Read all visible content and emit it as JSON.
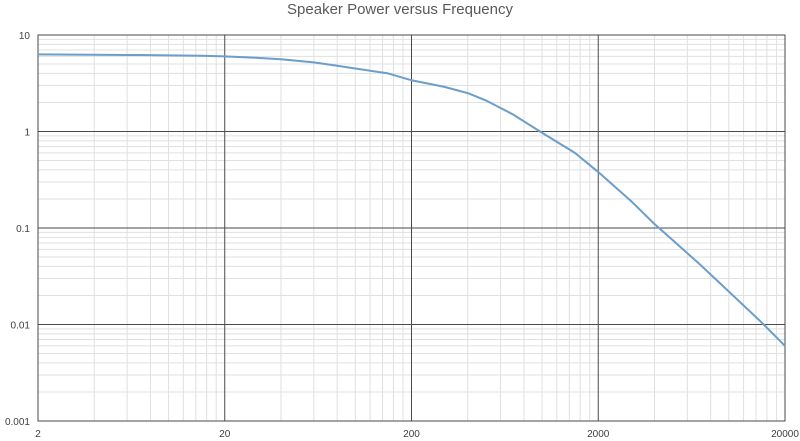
{
  "chart_data": {
    "type": "line",
    "title": "Speaker Power versus Frequency",
    "xlabel": "",
    "ylabel": "",
    "xscale": "log",
    "yscale": "log",
    "xlim": [
      2,
      20000
    ],
    "ylim": [
      0.001,
      10
    ],
    "x_ticks": [
      "2",
      "20",
      "200",
      "2000",
      "20000"
    ],
    "y_ticks": [
      "10",
      "1",
      "0.1",
      "0.01",
      "0.001"
    ],
    "grid": "major and minor (both axes)",
    "legend": "none",
    "line_color": "#6b9ecb",
    "series": [
      {
        "x": [
          2,
          4,
          7,
          10,
          15,
          20,
          30,
          40,
          60,
          80,
          100,
          150,
          180,
          200,
          300,
          400,
          500,
          700,
          1000,
          1500,
          2000,
          3000,
          4000,
          5000,
          7000,
          10000,
          15000,
          20000
        ],
        "values": [
          6.3,
          6.25,
          6.2,
          6.15,
          6.1,
          6.0,
          5.8,
          5.6,
          5.2,
          4.8,
          4.5,
          4.0,
          3.6,
          3.4,
          2.9,
          2.5,
          2.1,
          1.5,
          0.97,
          0.6,
          0.38,
          0.19,
          0.11,
          0.075,
          0.042,
          0.022,
          0.0105,
          0.006
        ]
      }
    ]
  }
}
